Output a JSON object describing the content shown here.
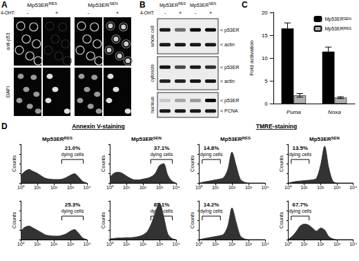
{
  "panel_letters": [
    "A",
    "B",
    "C",
    "D"
  ],
  "A": {
    "treatment_label": "4-OHT:",
    "cell_lines": [
      "Mp53ER RES",
      "Mp53ER SEN"
    ],
    "treatments": [
      "-",
      "+"
    ],
    "rows": [
      "anti-p53",
      "DAPI"
    ]
  },
  "B": {
    "treatment_label": "4-OHT:",
    "cell_lines": [
      "Mp53ER RES",
      "Mp53ER SEN"
    ],
    "treatments": [
      "-",
      "+"
    ],
    "fractions": [
      {
        "name": "whole cell",
        "bands": [
          {
            "label": "< p53ER",
            "intensity": [
              0.9,
              0.55,
              0.95,
              0.95
            ]
          },
          {
            "label": "< actin",
            "intensity": [
              0.9,
              0.9,
              0.9,
              0.9
            ]
          }
        ]
      },
      {
        "name": "cytosols",
        "bands": [
          {
            "label": "< p53ER",
            "intensity": [
              0.9,
              0.7,
              0.9,
              0.8
            ]
          },
          {
            "label": "< actin",
            "intensity": [
              0.85,
              0.85,
              0.9,
              0.9
            ]
          }
        ]
      },
      {
        "name": "nucleus",
        "bands": [
          {
            "label": "< p53ER",
            "intensity": [
              0.15,
              0.3,
              0.35,
              0.95
            ]
          },
          {
            "label": "< PCNA",
            "intensity": [
              0.9,
              0.9,
              0.9,
              0.9
            ]
          }
        ]
      }
    ]
  },
  "D": {
    "groups": [
      "Annexin V-staining",
      "TMRE-staining"
    ]
  },
  "chart_data": [
    {
      "type": "bar",
      "ylabel": "Fold activation",
      "categories": [
        "Puma",
        "Noxa"
      ],
      "series": [
        {
          "name": "Mp53ER SEN",
          "color": "#000000",
          "values": [
            16.5,
            11.4
          ],
          "errors": [
            1.2,
            1.0
          ]
        },
        {
          "name": "Mp53ER RES",
          "color": "#b0b0b0",
          "values": [
            1.8,
            1.3
          ],
          "errors": [
            0.4,
            0.2
          ]
        }
      ],
      "ylim": [
        0,
        20
      ],
      "yticks": [
        0,
        5,
        10,
        15,
        20
      ],
      "legend": "top-right",
      "grid": false
    },
    {
      "type": "line",
      "title": "Mp53ER RES",
      "ylabel": "Counts",
      "color": "#333333",
      "log": "x",
      "tick_labels": "x",
      "x": [
        1,
        1.78,
        3.16,
        5.62,
        10,
        17.8,
        31.6,
        56.2,
        100,
        178,
        316,
        562,
        1000,
        1780,
        3160,
        5620,
        10000
      ],
      "values": [
        20,
        30,
        35,
        30,
        25,
        18,
        12,
        10,
        9,
        9,
        10,
        14,
        20,
        24,
        15,
        4,
        0
      ],
      "xlim": [
        1,
        10000
      ],
      "xticks": [
        {
          "value": 1,
          "label": "10⁰"
        },
        {
          "value": 10,
          "label": "10¹"
        },
        {
          "value": 100,
          "label": "10²"
        },
        {
          "value": 1000,
          "label": "10³"
        },
        {
          "value": 10000,
          "label": "10⁴"
        }
      ],
      "ylim": [
        0,
        100
      ],
      "yticks": [
        0,
        25,
        50,
        75,
        100
      ],
      "annotations": [
        "21.0%",
        "dying cells"
      ],
      "gate_range": [
        300,
        6000
      ]
    },
    {
      "type": "line",
      "title": "Mp53ER SEN",
      "ylabel": "Counts",
      "color": "#333333",
      "log": "x",
      "tick_labels": "x",
      "x": [
        1,
        1.78,
        3.16,
        5.62,
        10,
        17.8,
        31.6,
        56.2,
        100,
        178,
        316,
        562,
        1000,
        1780,
        3160,
        5620,
        10000
      ],
      "values": [
        15,
        25,
        28,
        25,
        18,
        12,
        8,
        8,
        10,
        12,
        16,
        25,
        45,
        50,
        20,
        5,
        0
      ],
      "xlim": [
        1,
        10000
      ],
      "xticks": [
        {
          "value": 1,
          "label": "10⁰"
        },
        {
          "value": 10,
          "label": "10¹"
        },
        {
          "value": 100,
          "label": "10²"
        },
        {
          "value": 1000,
          "label": "10³"
        },
        {
          "value": 10000,
          "label": "10⁴"
        }
      ],
      "ylim": [
        0,
        100
      ],
      "yticks": [
        0,
        25,
        50,
        75,
        100
      ],
      "annotations": [
        "37.1%",
        "dying cells"
      ],
      "gate_range": [
        300,
        6000
      ]
    },
    {
      "type": "line",
      "title": "Mp53ER RES",
      "ylabel": "Counts",
      "color": "#333333",
      "log": "x",
      "tick_labels": "x",
      "x": [
        1,
        1.78,
        3.16,
        5.62,
        10,
        17.8,
        31.6,
        56.2,
        100,
        178,
        316,
        562,
        1000,
        1780,
        3160,
        5620,
        10000
      ],
      "values": [
        0,
        2,
        4,
        6,
        8,
        10,
        14,
        35,
        80,
        45,
        10,
        2,
        0,
        0,
        0,
        0,
        0
      ],
      "xlim": [
        1,
        10000
      ],
      "xticks": [
        {
          "value": 1,
          "label": "10⁰"
        },
        {
          "value": 10,
          "label": "10¹"
        },
        {
          "value": 100,
          "label": "10²"
        },
        {
          "value": 1000,
          "label": "10³"
        },
        {
          "value": 10000,
          "label": "10⁴"
        }
      ],
      "ylim": [
        0,
        100
      ],
      "yticks": [
        0,
        25,
        50,
        75,
        100
      ],
      "annotations": [
        "14.8%",
        "dying cells"
      ],
      "gate_range": [
        1.6,
        20
      ]
    },
    {
      "type": "line",
      "title": "Mp53ER SEN",
      "ylabel": "Counts",
      "color": "#333333",
      "log": "x",
      "tick_labels": "x",
      "x": [
        1,
        1.78,
        3.16,
        5.62,
        10,
        17.8,
        31.6,
        56.2,
        100,
        178,
        316,
        562,
        1000,
        1780,
        3160,
        5620,
        10000
      ],
      "values": [
        0,
        2,
        4,
        5,
        6,
        7,
        8,
        12,
        45,
        95,
        40,
        5,
        0,
        0,
        0,
        0,
        0
      ],
      "xlim": [
        1,
        10000
      ],
      "xticks": [
        {
          "value": 1,
          "label": "10⁰"
        },
        {
          "value": 10,
          "label": "10¹"
        },
        {
          "value": 100,
          "label": "10²"
        },
        {
          "value": 1000,
          "label": "10³"
        },
        {
          "value": 10000,
          "label": "10⁴"
        }
      ],
      "ylim": [
        0,
        100
      ],
      "yticks": [
        0,
        25,
        50,
        75,
        100
      ],
      "annotations": [
        "13.5%",
        "dying cells"
      ],
      "gate_range": [
        1.6,
        20
      ]
    },
    {
      "type": "line",
      "ylabel": "Counts",
      "color": "#333333",
      "log": "x",
      "tick_labels": "x",
      "x": [
        1,
        1.78,
        3.16,
        5.62,
        10,
        17.8,
        31.6,
        56.2,
        100,
        178,
        316,
        562,
        1000,
        1780,
        3160,
        5620,
        10000
      ],
      "values": [
        22,
        32,
        35,
        30,
        24,
        18,
        12,
        10,
        9,
        9,
        11,
        15,
        22,
        26,
        16,
        4,
        0
      ],
      "xlim": [
        1,
        10000
      ],
      "xticks": [
        {
          "value": 1,
          "label": "10⁰"
        },
        {
          "value": 10,
          "label": "10¹"
        },
        {
          "value": 100,
          "label": "10²"
        },
        {
          "value": 1000,
          "label": "10³"
        },
        {
          "value": 10000,
          "label": "10⁴"
        }
      ],
      "ylim": [
        0,
        100
      ],
      "yticks": [
        0,
        25,
        50,
        75,
        100
      ],
      "annotations": [
        "25.3%",
        "dying cells"
      ],
      "gate_range": [
        300,
        6000
      ]
    },
    {
      "type": "line",
      "ylabel": "Counts",
      "color": "#333333",
      "log": "x",
      "tick_labels": "x",
      "x": [
        1,
        1.78,
        3.16,
        5.62,
        10,
        17.8,
        31.6,
        56.2,
        100,
        178,
        316,
        562,
        1000,
        1780,
        3160,
        5620,
        10000
      ],
      "values": [
        2,
        3,
        4,
        4,
        5,
        5,
        6,
        8,
        12,
        20,
        40,
        70,
        95,
        60,
        15,
        3,
        0
      ],
      "xlim": [
        1,
        10000
      ],
      "xticks": [
        {
          "value": 1,
          "label": "10⁰"
        },
        {
          "value": 10,
          "label": "10¹"
        },
        {
          "value": 100,
          "label": "10²"
        },
        {
          "value": 1000,
          "label": "10³"
        },
        {
          "value": 10000,
          "label": "10⁴"
        }
      ],
      "ylim": [
        0,
        100
      ],
      "yticks": [
        0,
        25,
        50,
        75,
        100
      ],
      "annotations": [
        "85.1%",
        "dying cells"
      ],
      "gate_range": [
        300,
        6000
      ]
    },
    {
      "type": "line",
      "ylabel": "Counts",
      "color": "#333333",
      "log": "x",
      "tick_labels": "x",
      "x": [
        1,
        1.78,
        3.16,
        5.62,
        10,
        17.8,
        31.6,
        56.2,
        100,
        178,
        316,
        562,
        1000,
        1780,
        3160,
        5620,
        10000
      ],
      "values": [
        0,
        2,
        4,
        6,
        8,
        10,
        14,
        35,
        82,
        45,
        10,
        2,
        0,
        0,
        0,
        0,
        0
      ],
      "xlim": [
        1,
        10000
      ],
      "xticks": [
        {
          "value": 1,
          "label": "10⁰"
        },
        {
          "value": 10,
          "label": "10¹"
        },
        {
          "value": 100,
          "label": "10²"
        },
        {
          "value": 1000,
          "label": "10³"
        },
        {
          "value": 10000,
          "label": "10⁴"
        }
      ],
      "ylim": [
        0,
        100
      ],
      "yticks": [
        0,
        25,
        50,
        75,
        100
      ],
      "annotations": [
        "14.2%",
        "dying cells"
      ],
      "gate_range": [
        1.6,
        20
      ]
    },
    {
      "type": "line",
      "ylabel": "Counts",
      "color": "#333333",
      "log": "x",
      "tick_labels": "x",
      "x": [
        1,
        1.78,
        3.16,
        5.62,
        10,
        17.8,
        31.6,
        56.2,
        100,
        178,
        316,
        562,
        1000,
        1780,
        3160,
        5620,
        10000
      ],
      "values": [
        0,
        8,
        20,
        35,
        40,
        38,
        30,
        22,
        30,
        25,
        8,
        2,
        0,
        0,
        0,
        0,
        0
      ],
      "xlim": [
        1,
        10000
      ],
      "xticks": [
        {
          "value": 1,
          "label": "10⁰"
        },
        {
          "value": 10,
          "label": "10¹"
        },
        {
          "value": 100,
          "label": "10²"
        },
        {
          "value": 1000,
          "label": "10³"
        },
        {
          "value": 10000,
          "label": "10⁴"
        }
      ],
      "ylim": [
        0,
        100
      ],
      "yticks": [
        0,
        25,
        50,
        75,
        100
      ],
      "annotations": [
        "67.7%",
        "dying cells"
      ],
      "gate_range": [
        1.6,
        20
      ]
    }
  ]
}
